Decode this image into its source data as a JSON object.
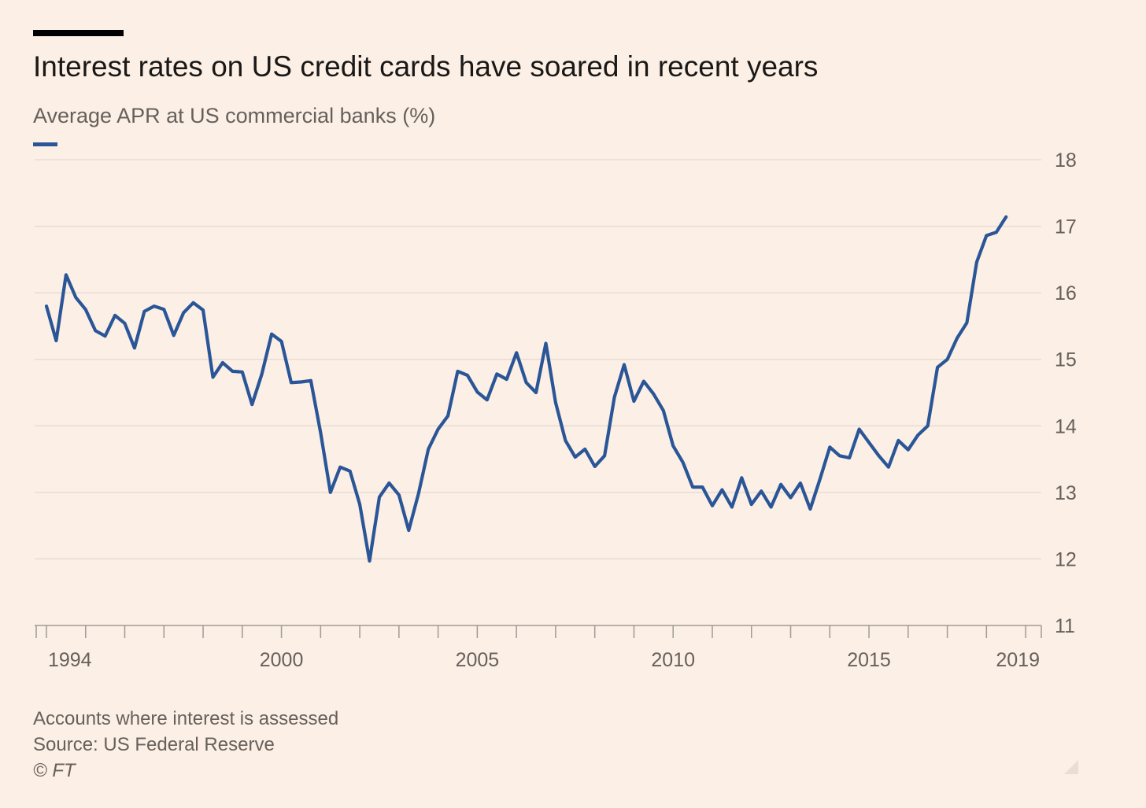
{
  "header": {
    "title": "Interest rates on US credit cards have soared in recent years",
    "subtitle": "Average APR at US commercial banks (%)"
  },
  "colors": {
    "background": "#fcefe5",
    "series": "#2a5697",
    "gridline": "#e9ddd3",
    "axis": "#a09a96",
    "tick_text": "#66605c"
  },
  "chart_data": {
    "type": "line",
    "title": "Interest rates on US credit cards have soared in recent years",
    "subtitle": "Average APR at US commercial banks (%)",
    "xlabel": "",
    "ylabel": "",
    "x_ticks": [
      1994,
      2000,
      2005,
      2010,
      2015,
      2019
    ],
    "xlim": [
      1993.9,
      2019.4
    ],
    "y_ticks": [
      11,
      12,
      13,
      14,
      15,
      16,
      17,
      18
    ],
    "ylim": [
      11,
      18
    ],
    "y_axis_side": "right",
    "grid": "horizontal",
    "series": [
      {
        "values": [
          [
            1994.0,
            15.8
          ],
          [
            1994.25,
            15.28
          ],
          [
            1994.5,
            16.27
          ],
          [
            1994.75,
            15.93
          ],
          [
            1995.0,
            15.75
          ],
          [
            1995.25,
            15.43
          ],
          [
            1995.5,
            15.35
          ],
          [
            1995.75,
            15.66
          ],
          [
            1996.0,
            15.54
          ],
          [
            1996.25,
            15.17
          ],
          [
            1996.5,
            15.72
          ],
          [
            1996.75,
            15.8
          ],
          [
            1997.0,
            15.75
          ],
          [
            1997.25,
            15.36
          ],
          [
            1997.5,
            15.7
          ],
          [
            1997.75,
            15.85
          ],
          [
            1998.0,
            15.74
          ],
          [
            1998.25,
            14.73
          ],
          [
            1998.5,
            14.95
          ],
          [
            1998.75,
            14.82
          ],
          [
            1999.0,
            14.81
          ],
          [
            1999.25,
            14.32
          ],
          [
            1999.5,
            14.78
          ],
          [
            1999.75,
            15.38
          ],
          [
            2000.0,
            15.27
          ],
          [
            2000.25,
            14.65
          ],
          [
            2000.5,
            14.66
          ],
          [
            2000.75,
            14.68
          ],
          [
            2001.0,
            13.9
          ],
          [
            2001.25,
            13.0
          ],
          [
            2001.5,
            13.38
          ],
          [
            2001.75,
            13.32
          ],
          [
            2002.0,
            12.82
          ],
          [
            2002.25,
            11.97
          ],
          [
            2002.5,
            12.93
          ],
          [
            2002.75,
            13.14
          ],
          [
            2003.0,
            12.96
          ],
          [
            2003.25,
            12.43
          ],
          [
            2003.5,
            12.98
          ],
          [
            2003.75,
            13.65
          ],
          [
            2004.0,
            13.95
          ],
          [
            2004.25,
            14.15
          ],
          [
            2004.5,
            14.82
          ],
          [
            2004.75,
            14.76
          ],
          [
            2005.0,
            14.51
          ],
          [
            2005.25,
            14.39
          ],
          [
            2005.5,
            14.78
          ],
          [
            2005.75,
            14.7
          ],
          [
            2006.0,
            15.1
          ],
          [
            2006.25,
            14.65
          ],
          [
            2006.5,
            14.5
          ],
          [
            2006.75,
            15.24
          ],
          [
            2007.0,
            14.35
          ],
          [
            2007.25,
            13.78
          ],
          [
            2007.5,
            13.53
          ],
          [
            2007.75,
            13.65
          ],
          [
            2008.0,
            13.39
          ],
          [
            2008.25,
            13.55
          ],
          [
            2008.5,
            14.43
          ],
          [
            2008.75,
            14.92
          ],
          [
            2009.0,
            14.37
          ],
          [
            2009.25,
            14.67
          ],
          [
            2009.5,
            14.48
          ],
          [
            2009.75,
            14.23
          ],
          [
            2010.0,
            13.7
          ],
          [
            2010.25,
            13.45
          ],
          [
            2010.5,
            13.08
          ],
          [
            2010.75,
            13.08
          ],
          [
            2011.0,
            12.8
          ],
          [
            2011.25,
            13.04
          ],
          [
            2011.5,
            12.78
          ],
          [
            2011.75,
            13.22
          ],
          [
            2012.0,
            12.82
          ],
          [
            2012.25,
            13.02
          ],
          [
            2012.5,
            12.78
          ],
          [
            2012.75,
            13.12
          ],
          [
            2013.0,
            12.92
          ],
          [
            2013.25,
            13.14
          ],
          [
            2013.5,
            12.75
          ],
          [
            2013.75,
            13.2
          ],
          [
            2014.0,
            13.68
          ],
          [
            2014.25,
            13.55
          ],
          [
            2014.5,
            13.52
          ],
          [
            2014.75,
            13.95
          ],
          [
            2015.0,
            13.75
          ],
          [
            2015.25,
            13.55
          ],
          [
            2015.5,
            13.38
          ],
          [
            2015.75,
            13.78
          ],
          [
            2016.0,
            13.64
          ],
          [
            2016.25,
            13.86
          ],
          [
            2016.5,
            14.0
          ],
          [
            2016.75,
            14.88
          ],
          [
            2017.0,
            15.0
          ],
          [
            2017.25,
            15.32
          ],
          [
            2017.5,
            15.55
          ],
          [
            2017.75,
            16.46
          ],
          [
            2018.0,
            16.86
          ],
          [
            2018.25,
            16.91
          ],
          [
            2018.5,
            17.14
          ]
        ]
      }
    ]
  },
  "footer": {
    "note": "Accounts where interest is assessed",
    "source": "Source: US Federal Reserve",
    "copyright": "© FT"
  }
}
